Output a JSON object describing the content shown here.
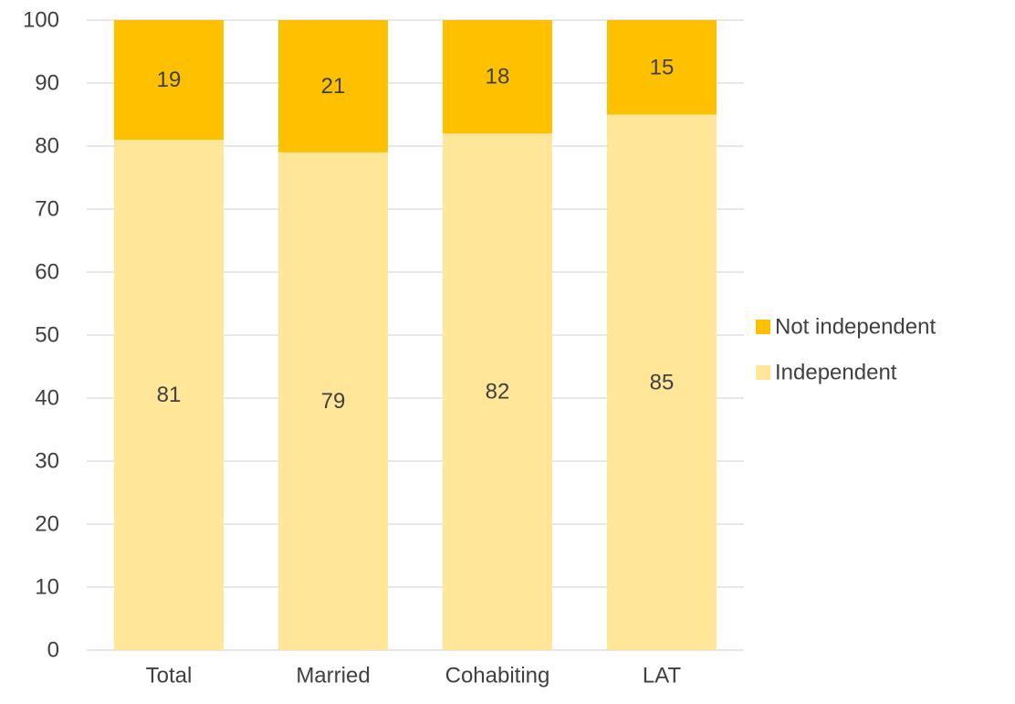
{
  "chart_data": {
    "type": "bar",
    "stacked": true,
    "categories": [
      "Total",
      "Married",
      "Cohabiting",
      "LAT"
    ],
    "series": [
      {
        "name": "Independent",
        "values": [
          81,
          79,
          82,
          85
        ],
        "color": "#FFE699"
      },
      {
        "name": "Not independent",
        "values": [
          19,
          21,
          18,
          15
        ],
        "color": "#FFC000"
      }
    ],
    "ylim": [
      0,
      100
    ],
    "yticks": [
      0,
      10,
      20,
      30,
      40,
      50,
      60,
      70,
      80,
      90,
      100
    ],
    "grid": true,
    "legend_position": "right",
    "legend_order": [
      "Not independent",
      "Independent"
    ],
    "data_labels": true,
    "axis_color": "#D9D9D9",
    "text_color": "#404040"
  }
}
